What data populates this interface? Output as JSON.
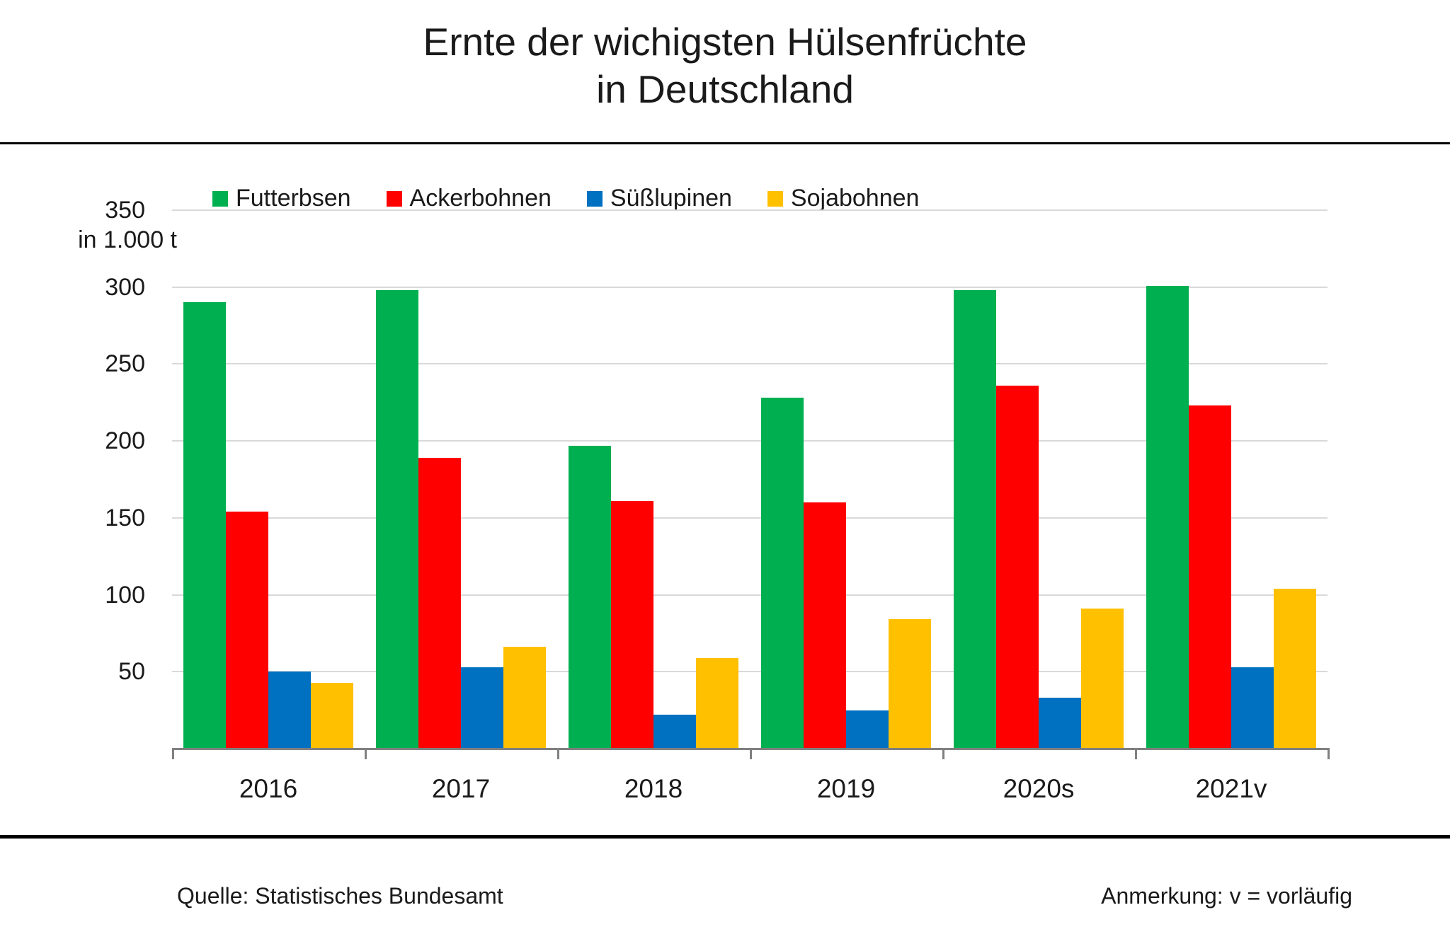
{
  "title": {
    "line1": "Ernte der wichigsten Hülsenfrüchte",
    "line2": "in Deutschland"
  },
  "axis": {
    "unit_label": "in 1.000 t",
    "y_ticks": [
      350,
      300,
      250,
      200,
      150,
      100,
      50
    ]
  },
  "footer": {
    "source": "Quelle: Statistisches Bundesamt",
    "note": "Anmerkung: v = vorläufig"
  },
  "colors": {
    "gridline": "#d9d9d9",
    "axis": "#808080",
    "divider": "#000000",
    "text": "#1a1a1a"
  },
  "chart_data": {
    "type": "bar",
    "title": "Ernte der wichigsten Hülsenfrüchte in Deutschland",
    "xlabel": "",
    "ylabel": "in 1.000 t",
    "ylim": [
      0,
      350
    ],
    "grid": true,
    "legend_position": "top",
    "categories": [
      "2016",
      "2017",
      "2018",
      "2019",
      "2020s",
      "2021v"
    ],
    "series": [
      {
        "name": "Futterbsen",
        "color": "#00b050",
        "values": [
          290,
          298,
          197,
          228,
          298,
          301
        ]
      },
      {
        "name": "Ackerbohnen",
        "color": "#ff0000",
        "values": [
          154,
          189,
          161,
          160,
          236,
          223
        ]
      },
      {
        "name": "Süßlupinen",
        "color": "#0070c0",
        "values": [
          50,
          53,
          22,
          25,
          33,
          53
        ]
      },
      {
        "name": "Sojabohnen",
        "color": "#ffc000",
        "values": [
          43,
          66,
          59,
          84,
          91,
          104
        ]
      }
    ]
  }
}
